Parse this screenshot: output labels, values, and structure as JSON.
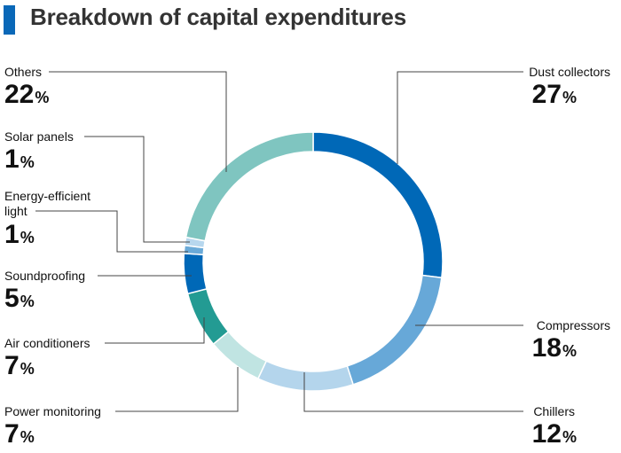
{
  "title": "Breakdown of capital expenditures",
  "chart_data": {
    "type": "pie",
    "donut": true,
    "unit": "%",
    "slices": [
      {
        "label": "Dust collectors",
        "value": 27,
        "color": "#0068b7"
      },
      {
        "label": "Compressors",
        "value": 18,
        "color": "#67a8d8"
      },
      {
        "label": "Chillers",
        "value": 12,
        "color": "#b4d5ec"
      },
      {
        "label": "Power monitoring",
        "value": 7,
        "color": "#c0e4e2"
      },
      {
        "label": "Air conditioners",
        "value": 7,
        "color": "#239b93"
      },
      {
        "label": "Soundproofing",
        "value": 5,
        "color": "#0068b7"
      },
      {
        "label": "Energy-efficient light",
        "value": 1,
        "color": "#6aaad8"
      },
      {
        "label": "Solar panels",
        "value": 1,
        "color": "#b7d7ee"
      },
      {
        "label": "Others",
        "value": 22,
        "color": "#7fc5c0"
      }
    ]
  },
  "labels": {
    "dust": {
      "name": "Dust collectors",
      "value": "27",
      "unit": "%"
    },
    "compressors": {
      "name": "Compressors",
      "value": "18",
      "unit": "%"
    },
    "chillers": {
      "name": "Chillers",
      "value": "12",
      "unit": "%"
    },
    "power": {
      "name": "Power monitoring",
      "value": "7",
      "unit": "%"
    },
    "air": {
      "name": "Air conditioners",
      "value": "7",
      "unit": "%"
    },
    "sound": {
      "name": "Soundproofing",
      "value": "5",
      "unit": "%"
    },
    "light": {
      "name_line1": "Energy-efficient",
      "name_line2": "light",
      "value": "1",
      "unit": "%"
    },
    "solar": {
      "name": "Solar panels",
      "value": "1",
      "unit": "%"
    },
    "others": {
      "name": "Others",
      "value": "22",
      "unit": "%"
    }
  }
}
